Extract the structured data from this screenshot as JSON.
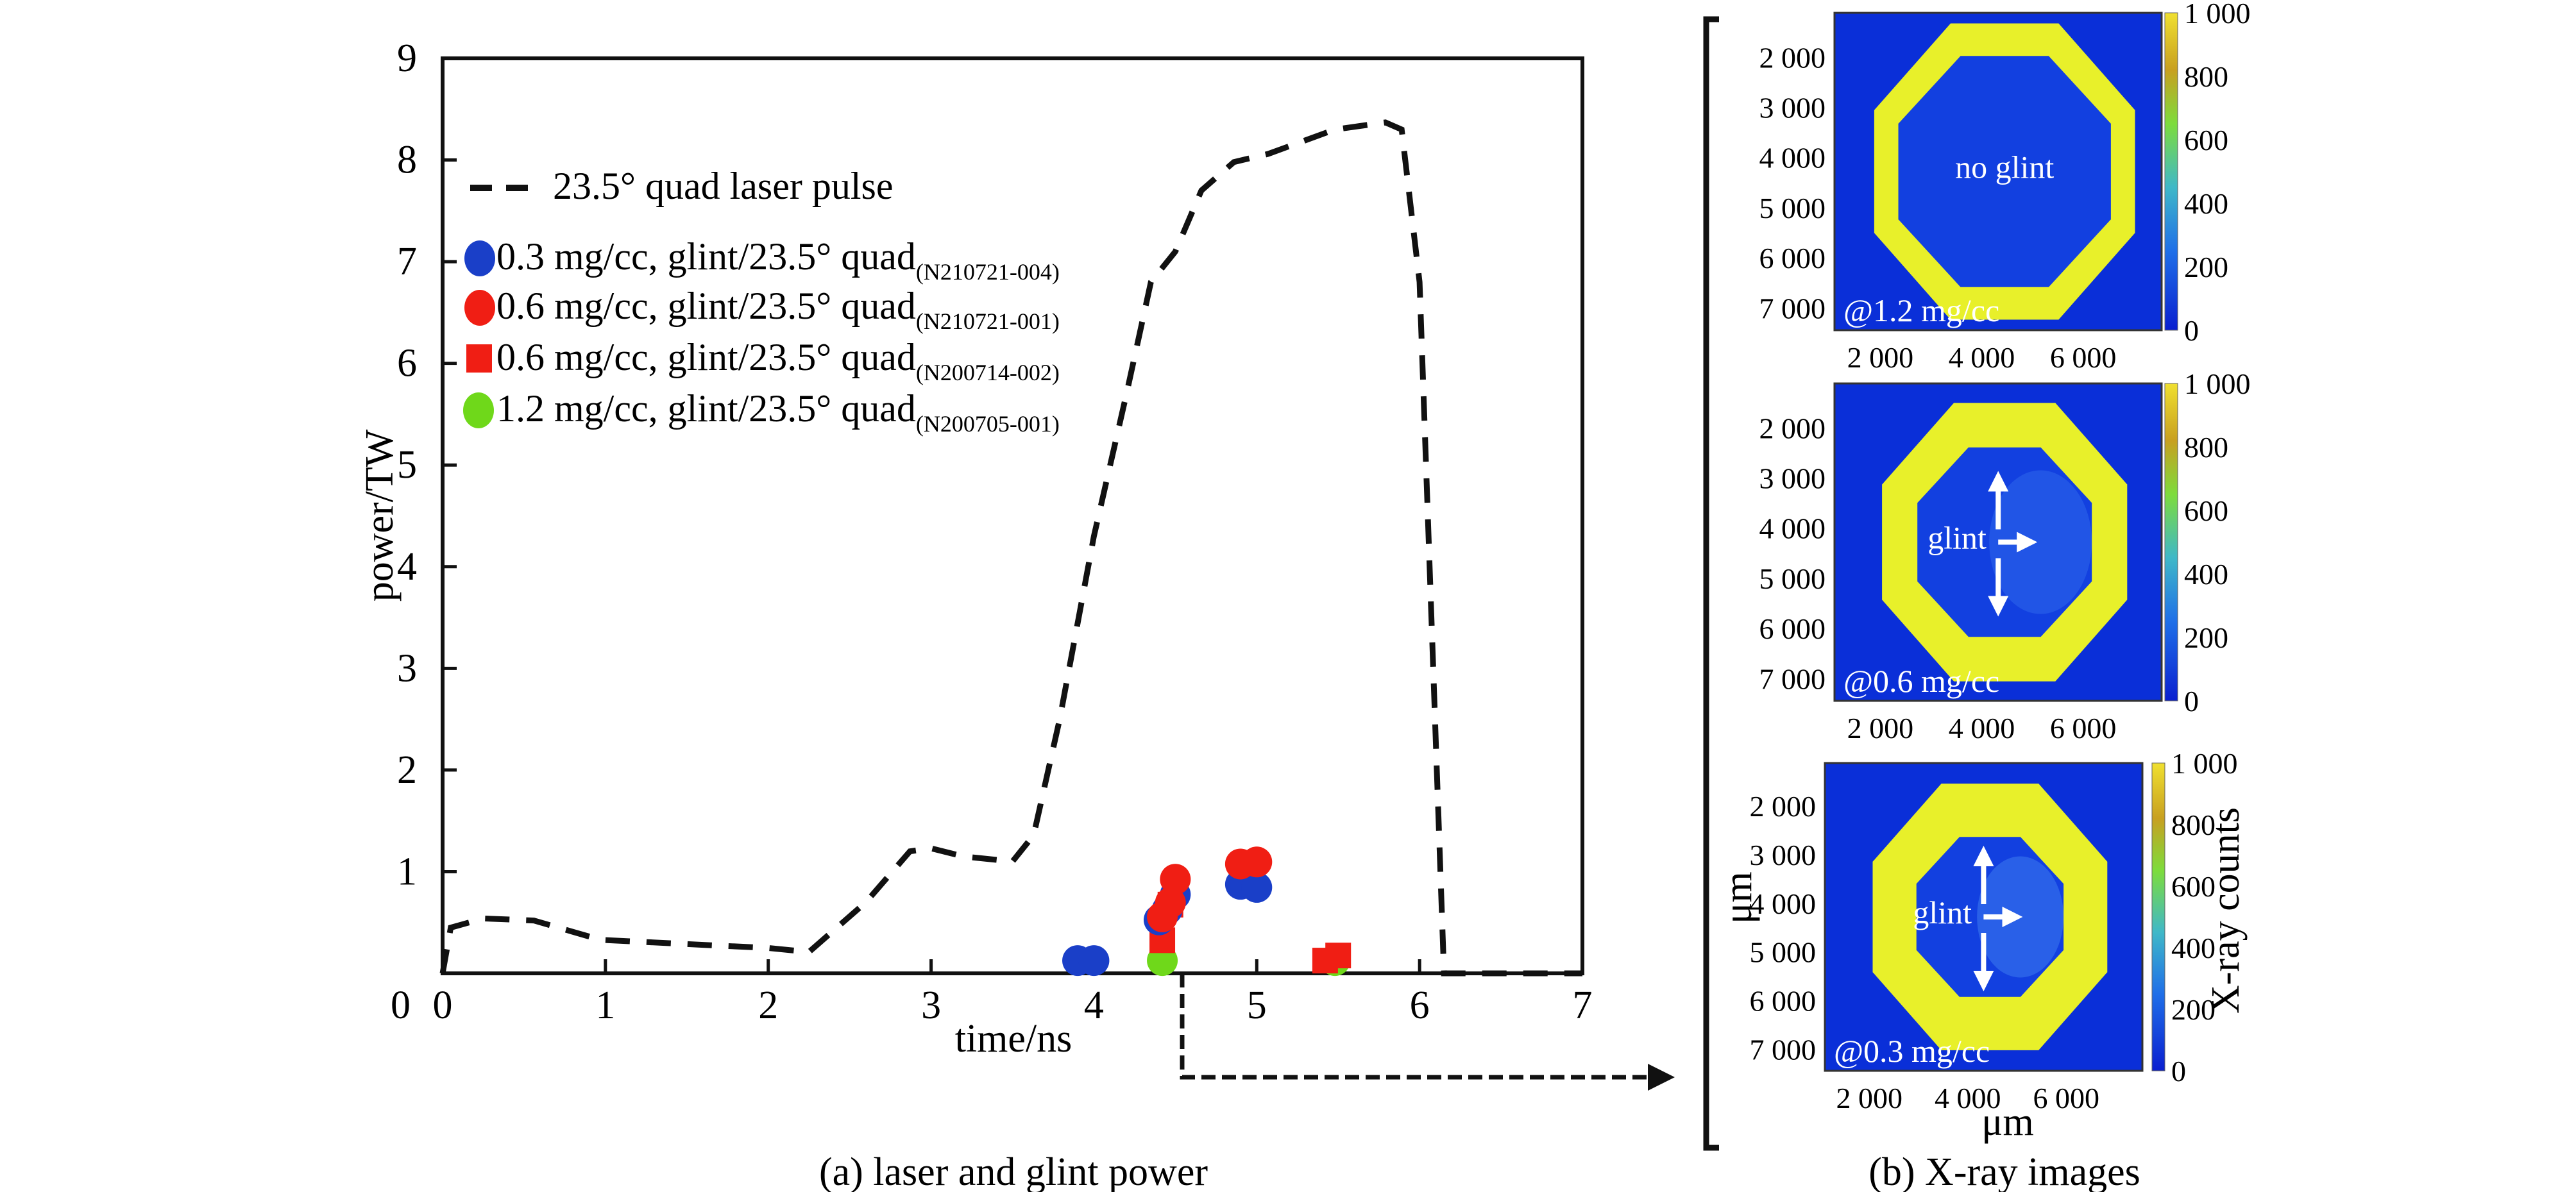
{
  "chart_data": [
    {
      "id": "laser-glint",
      "type": "line",
      "caption": "(a) laser and glint power",
      "xlabel": "time/ns",
      "ylabel": "power/TW",
      "xlim": [
        0,
        7
      ],
      "ylim": [
        0,
        9
      ],
      "xticks": [
        0,
        1,
        2,
        3,
        4,
        5,
        6,
        7
      ],
      "yticks": [
        1,
        2,
        3,
        4,
        5,
        6,
        7,
        8,
        9
      ],
      "ytick_labels_shown": [
        "0",
        "1",
        "2",
        "3",
        "4",
        "5",
        "6",
        "7",
        "8",
        "9"
      ],
      "grid": false,
      "legend_position": "upper-left",
      "series": [
        {
          "name": "23.5° quad laser pulse",
          "kind": "line",
          "style": "dashed",
          "color": "#111111",
          "x": [
            0,
            0.05,
            0.25,
            0.56,
            0.97,
            1.6,
            2.0,
            2.25,
            2.6,
            2.87,
            3.0,
            3.2,
            3.5,
            3.63,
            3.79,
            4.0,
            4.2,
            4.35,
            4.5,
            4.66,
            4.86,
            5.07,
            5.48,
            5.79,
            5.89,
            6.0,
            6.15,
            7.0
          ],
          "y": [
            0,
            0.45,
            0.54,
            0.52,
            0.33,
            0.28,
            0.25,
            0.21,
            0.7,
            1.2,
            1.23,
            1.15,
            1.1,
            1.36,
            2.5,
            4.3,
            5.7,
            6.8,
            7.1,
            7.7,
            7.98,
            8.06,
            8.3,
            8.37,
            8.3,
            6.8,
            0,
            0
          ]
        },
        {
          "name": "0.3 mg/cc, glint/23.5° quad",
          "shot": "(N210721-004)",
          "kind": "scatter",
          "marker": "circle",
          "color": "#1a3fc8",
          "x": [
            3.9,
            4.0,
            4.4,
            4.45,
            4.5,
            4.9,
            5.0
          ],
          "y": [
            0.05,
            0.05,
            0.45,
            0.55,
            0.7,
            0.8,
            0.77
          ]
        },
        {
          "name": "0.6 mg/cc, glint/23.5° quad",
          "shot": "(N210721-001)",
          "kind": "scatter",
          "marker": "circle",
          "color": "#f01e14",
          "x": [
            4.42,
            4.47,
            4.5,
            4.9,
            5.0
          ],
          "y": [
            0.48,
            0.62,
            0.85,
            1.0,
            1.02
          ]
        },
        {
          "name": "0.6 mg/cc, glint/23.5° quad",
          "shot": "(N200714-002)",
          "kind": "scatter",
          "marker": "square",
          "color": "#f01e14",
          "x": [
            4.42,
            4.47,
            5.42,
            5.5
          ],
          "y": [
            0.25,
            0.6,
            0.05,
            0.1
          ]
        },
        {
          "name": "1.2 mg/cc, glint/23.5° quad",
          "shot": "(N200705-001)",
          "kind": "scatter",
          "marker": "circle",
          "color": "#6fd81a",
          "x": [
            4.42,
            5.48
          ],
          "y": [
            0.05,
            0.05
          ]
        }
      ]
    },
    {
      "id": "xray-images",
      "type": "heatmap",
      "caption": "(b) X-ray images",
      "xlabel": "μm",
      "ylabel": "μm",
      "colorbar_label": "X-ray counts",
      "colorbar_range": [
        0,
        1000
      ],
      "colorbar_ticks": [
        "0",
        "200",
        "400",
        "600",
        "800",
        "1 000"
      ],
      "xticks": [
        "2 000",
        "4 000",
        "6 000"
      ],
      "yticks": [
        "2 000",
        "3 000",
        "4 000",
        "5 000",
        "6 000",
        "7 000"
      ],
      "colormap": [
        "#0a1fd0",
        "#1f6fe8",
        "#3fb8c8",
        "#7ddc3c",
        "#c8a020",
        "#f0e030"
      ],
      "panels": [
        {
          "density_label": "@1.2 mg/cc",
          "annotation": "no glint",
          "glint_arrows": false
        },
        {
          "density_label": "@0.6 mg/cc",
          "annotation": "glint",
          "glint_arrows": true
        },
        {
          "density_label": "@0.3 mg/cc",
          "annotation": "glint",
          "glint_arrows": true
        }
      ]
    }
  ]
}
